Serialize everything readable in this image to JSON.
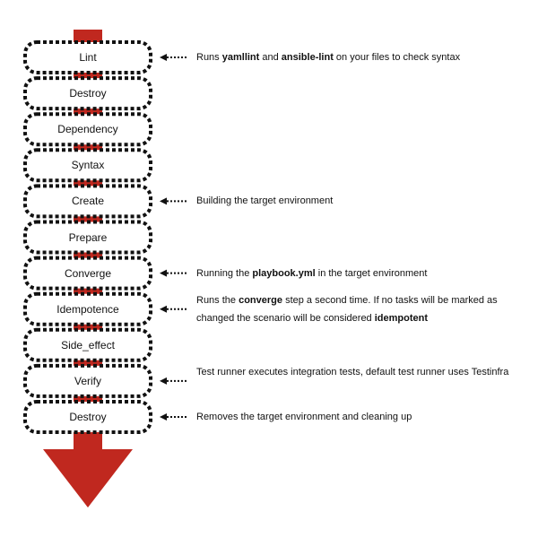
{
  "colors": {
    "arrow": "#c0281f",
    "border": "#111111",
    "text": "#111111"
  },
  "steps": [
    {
      "label": "Lint"
    },
    {
      "label": "Destroy"
    },
    {
      "label": "Dependency"
    },
    {
      "label": "Syntax"
    },
    {
      "label": "Create"
    },
    {
      "label": "Prepare"
    },
    {
      "label": "Converge"
    },
    {
      "label": "Idempotence"
    },
    {
      "label": "Side_effect"
    },
    {
      "label": "Verify"
    },
    {
      "label": "Destroy"
    }
  ],
  "notes": [
    {
      "step": 0,
      "parts": [
        {
          "text": "Runs ",
          "bold": false
        },
        {
          "text": "yamllint",
          "bold": true
        },
        {
          "text": " and ",
          "bold": false
        },
        {
          "text": "ansible-lint",
          "bold": true
        },
        {
          "text": " on your files to check syntax",
          "bold": false
        }
      ]
    },
    {
      "step": 4,
      "parts": [
        {
          "text": "Building the target environment",
          "bold": false
        }
      ]
    },
    {
      "step": 6,
      "parts": [
        {
          "text": "Running the ",
          "bold": false
        },
        {
          "text": "playbook.yml",
          "bold": true
        },
        {
          "text": " in the target environment",
          "bold": false
        }
      ]
    },
    {
      "step": 7,
      "parts": [
        {
          "text": "Runs the ",
          "bold": false
        },
        {
          "text": "converge",
          "bold": true
        },
        {
          "text": " step a second time. If no tasks will be marked as changed the scenario will be considered ",
          "bold": false
        },
        {
          "text": "idempotent",
          "bold": true
        }
      ]
    },
    {
      "step": 9,
      "parts": [
        {
          "text": "Test runner executes integration tests, default test runner uses Testinfra",
          "bold": false
        }
      ]
    },
    {
      "step": 10,
      "parts": [
        {
          "text": "Removes the target environment and cleaning up",
          "bold": false
        }
      ]
    }
  ]
}
